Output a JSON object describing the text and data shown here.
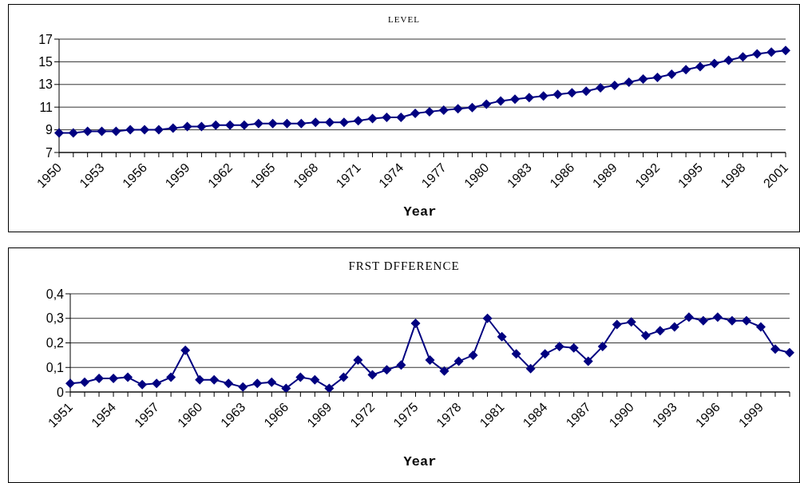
{
  "chart_data": [
    {
      "type": "line",
      "title": "LEVEL",
      "xlabel": "Year",
      "categories": [
        "1950",
        null,
        null,
        "1953",
        null,
        null,
        "1956",
        null,
        null,
        "1959",
        null,
        null,
        "1962",
        null,
        null,
        "1965",
        null,
        null,
        "1968",
        null,
        null,
        "1971",
        null,
        null,
        "1974",
        null,
        null,
        "1977",
        null,
        null,
        "1980",
        null,
        null,
        "1983",
        null,
        null,
        "1986",
        null,
        null,
        "1989",
        null,
        null,
        "1992",
        null,
        null,
        "1995",
        null,
        null,
        "1998",
        null,
        null,
        "2001"
      ],
      "series": [
        {
          "color": "#000080",
          "values": [
            8.72,
            8.72,
            8.86,
            8.86,
            8.86,
            9.0,
            9.0,
            9.0,
            9.14,
            9.28,
            9.28,
            9.42,
            9.42,
            9.42,
            9.56,
            9.56,
            9.56,
            9.56,
            9.66,
            9.66,
            9.66,
            9.8,
            9.99,
            10.1,
            10.1,
            10.45,
            10.6,
            10.73,
            10.85,
            10.97,
            11.26,
            11.55,
            11.7,
            11.84,
            11.98,
            12.12,
            12.27,
            12.4,
            12.7,
            12.92,
            13.2,
            13.48,
            13.62,
            13.9,
            14.3,
            14.57,
            14.85,
            15.14,
            15.43,
            15.7,
            15.85,
            16.0
          ]
        }
      ],
      "ylim": [
        7,
        17
      ],
      "yticks": [
        7,
        9,
        11,
        13,
        15,
        17
      ],
      "grid": "y",
      "marker": "diamond"
    },
    {
      "type": "line",
      "title": "FRST DFFERENCE",
      "xlabel": "Year",
      "categories": [
        "1951",
        null,
        null,
        "1954",
        null,
        null,
        "1957",
        null,
        null,
        "1960",
        null,
        null,
        "1963",
        null,
        null,
        "1966",
        null,
        null,
        "1969",
        null,
        null,
        "1972",
        null,
        null,
        "1975",
        null,
        null,
        "1978",
        null,
        null,
        "1981",
        null,
        null,
        "1984",
        null,
        null,
        "1987",
        null,
        null,
        "1990",
        null,
        null,
        "1993",
        null,
        null,
        "1996",
        null,
        null,
        "1999",
        null,
        null
      ],
      "series": [
        {
          "color": "#000080",
          "values": [
            0.035,
            0.04,
            0.055,
            0.055,
            0.06,
            0.03,
            0.035,
            0.06,
            0.17,
            0.05,
            0.05,
            0.035,
            0.02,
            0.035,
            0.04,
            0.015,
            0.06,
            0.05,
            0.015,
            0.06,
            0.13,
            0.07,
            0.09,
            0.11,
            0.28,
            0.13,
            0.085,
            0.125,
            0.15,
            0.3,
            0.225,
            0.155,
            0.095,
            0.155,
            0.185,
            0.18,
            0.125,
            0.185,
            0.275,
            0.285,
            0.23,
            0.25,
            0.265,
            0.305,
            0.29,
            0.305,
            0.29,
            0.29,
            0.265,
            0.175,
            0.16
          ]
        }
      ],
      "ylim": [
        0,
        0.4
      ],
      "yticks": [
        0,
        {
          "value": 0.1,
          "label": "0,1"
        },
        {
          "value": 0.2,
          "label": "0,2"
        },
        {
          "value": 0.3,
          "label": "0,3"
        },
        {
          "value": 0.4,
          "label": "0,4"
        }
      ],
      "grid": "y",
      "marker": "diamond"
    }
  ]
}
